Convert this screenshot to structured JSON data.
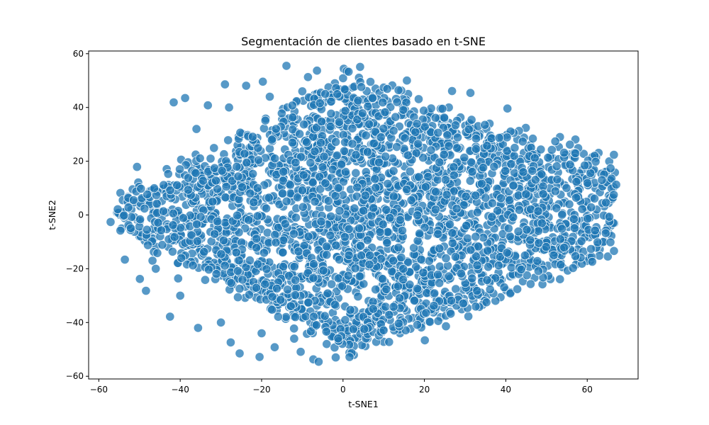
{
  "chart_data": {
    "type": "scatter",
    "title": "Segmentación de clientes basado en t-SNE",
    "xlabel": "t-SNE1",
    "ylabel": "t-SNE2",
    "xlim": [
      -62.5,
      72.5
    ],
    "ylim": [
      -61,
      61
    ],
    "xticks": [
      -60,
      -40,
      -20,
      0,
      20,
      40,
      60
    ],
    "yticks": [
      -60,
      -40,
      -20,
      0,
      20,
      40,
      60
    ],
    "xtick_labels": [
      "−60",
      "−40",
      "−20",
      "0",
      "20",
      "40",
      "60"
    ],
    "ytick_labels": [
      "−60",
      "−40",
      "−20",
      "0",
      "20",
      "40",
      "60"
    ],
    "grid": false,
    "legend": "none",
    "marker_color": "#1f77b4",
    "marker_edge_color": "#ffffff",
    "marker_alpha": 0.75,
    "n_points": 3000,
    "points": [
      [
        -57.1,
        -2.6
      ],
      [
        -55.5,
        0.8
      ],
      [
        -54.7,
        8.2
      ],
      [
        -54.1,
        5.5
      ],
      [
        -54.4,
        -5.0
      ],
      [
        -53.6,
        -16.6
      ],
      [
        -52.4,
        -4.3
      ],
      [
        -50.6,
        17.9
      ],
      [
        -50.3,
        12.1
      ],
      [
        -49.9,
        -23.8
      ],
      [
        -48.4,
        -28.2
      ],
      [
        -46.8,
        -17.0
      ],
      [
        -42.5,
        -37.8
      ],
      [
        -41.6,
        41.9
      ],
      [
        -40.5,
        -23.6
      ],
      [
        -38.8,
        43.5
      ],
      [
        -35.6,
        -42.0
      ],
      [
        -33.2,
        40.8
      ],
      [
        -29.0,
        48.6
      ],
      [
        -27.6,
        -47.4
      ],
      [
        -25.4,
        -51.5
      ],
      [
        -23.8,
        48.1
      ],
      [
        -20.5,
        -52.8
      ],
      [
        -19.7,
        49.6
      ],
      [
        -16.8,
        -49.2
      ],
      [
        -13.9,
        55.5
      ],
      [
        -10.4,
        -50.9
      ],
      [
        -8.6,
        51.3
      ],
      [
        -7.3,
        -53.7
      ],
      [
        -6.0,
        -54.6
      ],
      [
        -6.4,
        53.7
      ],
      [
        -1.8,
        -53.0
      ],
      [
        0.2,
        54.4
      ],
      [
        2.2,
        -51.0
      ],
      [
        4.2,
        55.1
      ],
      [
        5.5,
        -48.8
      ],
      [
        10.0,
        -47.2
      ],
      [
        12.1,
        48.2
      ],
      [
        15.7,
        50.0
      ],
      [
        20.1,
        -46.6
      ],
      [
        25.3,
        -41.4
      ],
      [
        26.8,
        46.1
      ],
      [
        30.8,
        -37.7
      ],
      [
        31.3,
        45.4
      ],
      [
        38.7,
        -30.6
      ],
      [
        40.4,
        39.6
      ],
      [
        44.2,
        -24.7
      ],
      [
        44.9,
        32.4
      ],
      [
        49.0,
        -25.8
      ],
      [
        53.3,
        29.0
      ],
      [
        53.3,
        -23.9
      ],
      [
        57.1,
        28.1
      ],
      [
        59.2,
        -5.1
      ],
      [
        62.8,
        23.1
      ],
      [
        64.5,
        16.2
      ],
      [
        66.0,
        12.4
      ],
      [
        66.8,
        15.8
      ],
      [
        65.3,
        7.2
      ],
      [
        -47.0,
        -10.0
      ],
      [
        -44.0,
        10.0
      ],
      [
        -40.0,
        -30.0
      ],
      [
        -36.0,
        32.0
      ],
      [
        -30.0,
        -40.0
      ],
      [
        -28.0,
        40.0
      ],
      [
        -20.0,
        -44.0
      ],
      [
        -18.0,
        44.0
      ],
      [
        -12.0,
        -46.0
      ],
      [
        -10.0,
        46.0
      ],
      [
        -4.0,
        -48.0
      ],
      [
        -2.0,
        49.0
      ],
      [
        6.0,
        -46.0
      ],
      [
        8.0,
        47.0
      ],
      [
        14.0,
        -44.0
      ],
      [
        16.0,
        45.0
      ],
      [
        24.0,
        -38.0
      ],
      [
        26.0,
        40.0
      ],
      [
        34.0,
        -30.0
      ],
      [
        36.0,
        34.0
      ],
      [
        44.0,
        -20.0
      ],
      [
        46.0,
        26.0
      ],
      [
        54.0,
        -10.0
      ],
      [
        56.0,
        18.0
      ],
      [
        60.0,
        2.0
      ],
      [
        62.0,
        10.0
      ],
      [
        -52.0,
        2.0
      ],
      [
        -50.0,
        -8.0
      ],
      [
        -48.0,
        6.0
      ],
      [
        -46.0,
        -20.0
      ]
    ]
  }
}
